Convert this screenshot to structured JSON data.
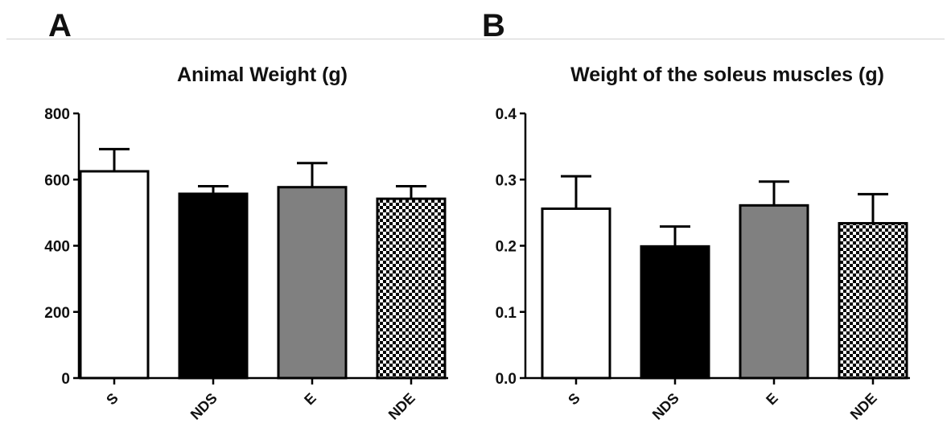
{
  "panels": {
    "a": "A",
    "b": "B"
  },
  "colors": {
    "S": "#ffffff",
    "NDS": "#000000",
    "E": "#808080",
    "NDE": "checker",
    "stroke": "#000000"
  },
  "chart_data": [
    {
      "type": "bar",
      "title": "Animal Weight (g)",
      "categories": [
        "S",
        "NDS",
        "E",
        "NDE"
      ],
      "values": [
        625,
        557,
        577,
        542
      ],
      "errors_upper": [
        692,
        580,
        650,
        580
      ],
      "ylim": [
        0,
        800
      ],
      "yticks": [
        0,
        200,
        400,
        600,
        800
      ],
      "ytick_labels": [
        "0",
        "200",
        "400",
        "600",
        "800"
      ],
      "xlabel": "",
      "ylabel": "",
      "grid": false
    },
    {
      "type": "bar",
      "title": "Weight of the soleus muscles (g)",
      "categories": [
        "S",
        "NDS",
        "E",
        "NDE"
      ],
      "values": [
        0.256,
        0.199,
        0.261,
        0.234
      ],
      "errors_upper": [
        0.305,
        0.229,
        0.297,
        0.278
      ],
      "ylim": [
        0,
        0.4
      ],
      "yticks": [
        0,
        0.1,
        0.2,
        0.3,
        0.4
      ],
      "ytick_labels": [
        "0.0",
        "0.1",
        "0.2",
        "0.3",
        "0.4"
      ],
      "xlabel": "",
      "ylabel": "",
      "grid": false
    }
  ]
}
